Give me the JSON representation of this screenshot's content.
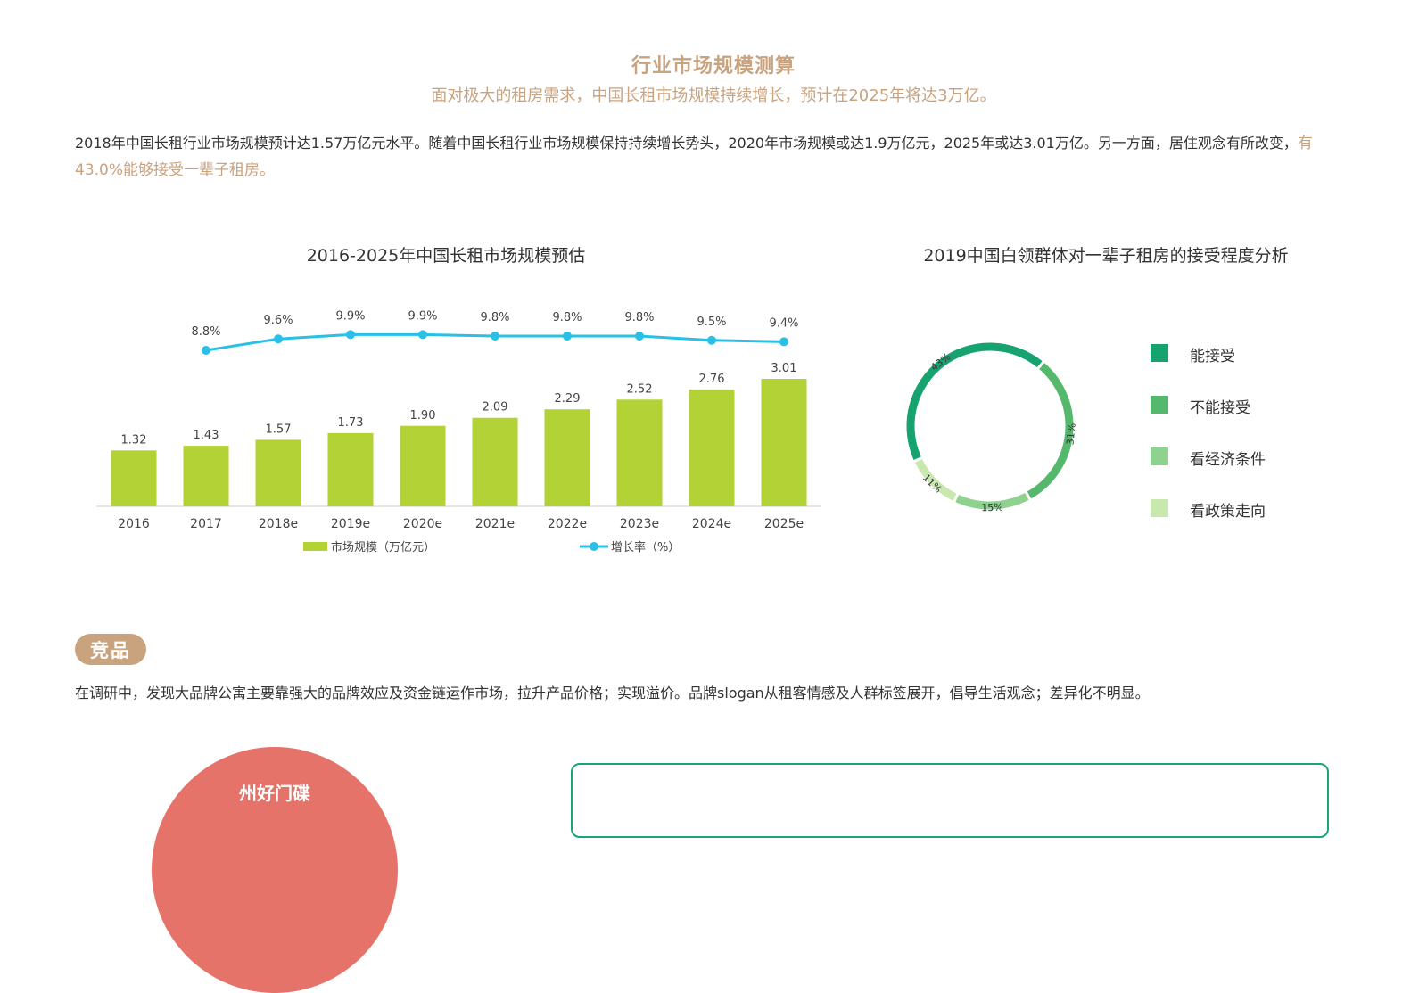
{
  "header": {
    "title": "行业市场规模测算",
    "subtitle": "面对极大的租房需求，中国长租市场规模持续增长，预计在2025年将达3万亿。"
  },
  "intro": {
    "text": "2018年中国长租行业市场规模预计达1.57万亿元水平。随着中国长租行业市场规模保持持续增长势头，2020年市场规模或达1.9万亿元，2025年或达3.01万亿。另一方面，居住观念有所改变，",
    "highlight": "有43.0%能够接受一辈子租房。"
  },
  "colors": {
    "accent": "#c9a27e",
    "bar": "#b2d235",
    "line": "#29c0e7",
    "competitor_red": "#e5736a",
    "box_green": "#1aa375"
  },
  "chart_data": [
    {
      "type": "bar",
      "title": "2016-2025年中国长租市场规模预估",
      "categories": [
        "2016",
        "2017",
        "2018e",
        "2019e",
        "2020e",
        "2021e",
        "2022e",
        "2023e",
        "2024e",
        "2025e"
      ],
      "series": [
        {
          "name": "市场规模（万亿元）",
          "type": "bar",
          "values": [
            1.32,
            1.43,
            1.57,
            1.73,
            1.9,
            2.09,
            2.29,
            2.52,
            2.76,
            3.01
          ],
          "labels": [
            "1.32",
            "1.43",
            "1.57",
            "1.73",
            "1.90",
            "2.09",
            "2.29",
            "2.52",
            "2.76",
            "3.01"
          ]
        },
        {
          "name": "增长率（%）",
          "type": "line",
          "values": [
            null,
            8.8,
            9.6,
            9.9,
            9.9,
            9.8,
            9.8,
            9.8,
            9.5,
            9.4
          ],
          "labels": [
            "",
            "8.8%",
            "9.6%",
            "9.9%",
            "9.9%",
            "9.8%",
            "9.8%",
            "9.8%",
            "9.5%",
            "9.4%"
          ]
        }
      ],
      "grid": false,
      "legend_position": "bottom"
    },
    {
      "type": "pie",
      "title": "2019中国白领群体对一辈子租房的接受程度分析",
      "labels": [
        "能接受",
        "不能接受",
        "看经济条件",
        "看政策走向"
      ],
      "values": [
        43,
        31,
        15,
        11
      ],
      "value_labels": [
        "43%",
        "31%",
        "15%",
        "11%"
      ],
      "colors": [
        "#16a36f",
        "#55b86c",
        "#8fd18f",
        "#c8e8b0"
      ],
      "donut": true,
      "legend_position": "right"
    }
  ],
  "competitor": {
    "badge": "竞品",
    "desc": "在调研中，发现大品牌公寓主要靠强大的品牌效应及资金链运作市场，拉升产品价格；实现溢价。品牌slogan从租客情感及人群标签展开，倡导生活观念；差异化不明显。",
    "red_label": "州好门碟"
  }
}
